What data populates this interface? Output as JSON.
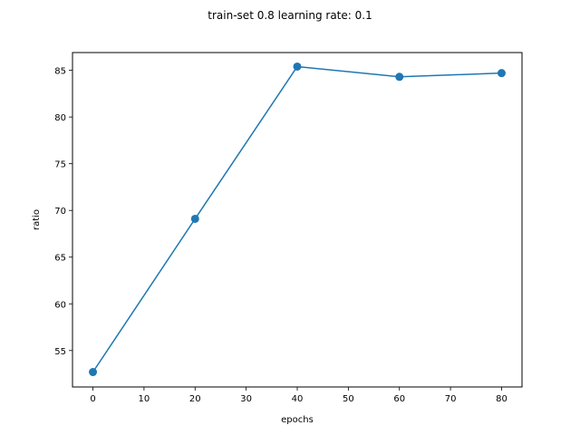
{
  "chart_data": {
    "type": "line",
    "title": "train-set 0.8 learning rate: 0.1",
    "xlabel": "epochs",
    "ylabel": "ratio",
    "xlim": [
      -4,
      84
    ],
    "ylim": [
      51.1,
      86.9
    ],
    "xticks": [
      0,
      10,
      20,
      30,
      40,
      50,
      60,
      70,
      80
    ],
    "yticks": [
      55,
      60,
      65,
      70,
      75,
      80,
      85
    ],
    "grid": false,
    "series": [
      {
        "x": [
          0,
          20,
          40,
          60,
          80
        ],
        "y": [
          52.7,
          69.1,
          85.4,
          84.3,
          84.7
        ],
        "color": "#1f77b4",
        "marker": "circle"
      }
    ]
  }
}
